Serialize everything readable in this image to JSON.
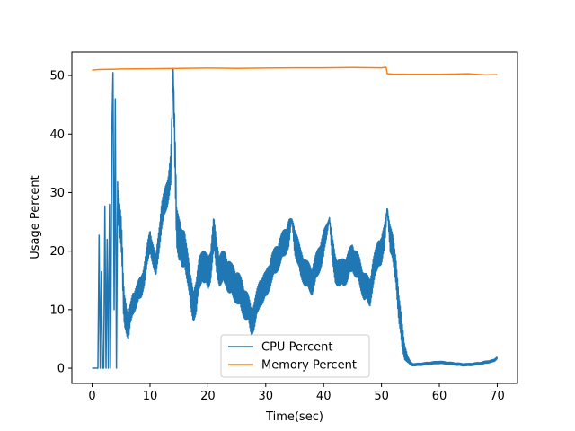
{
  "chart_data": {
    "type": "line",
    "title": "",
    "xlabel": "Time(sec)",
    "ylabel": "Usage Percent",
    "xlim": [
      -3.5,
      73.5
    ],
    "ylim": [
      -2.6,
      54.0
    ],
    "xticks": [
      0,
      10,
      20,
      30,
      40,
      50,
      60,
      70
    ],
    "yticks": [
      0,
      10,
      20,
      30,
      40,
      50
    ],
    "grid": false,
    "legend_position": "lower-center",
    "series": [
      {
        "name": "CPU Percent",
        "color": "#1f77b4",
        "x": [
          0,
          1.0,
          1.2,
          1.4,
          1.6,
          1.8,
          2.0,
          2.2,
          2.4,
          2.6,
          2.8,
          3.0,
          3.2,
          3.4,
          3.6,
          3.8,
          4.0,
          4.2,
          4.4,
          4.6,
          4.8,
          5.0,
          5.2,
          5.4,
          5.6,
          5.8,
          6.0,
          6.3,
          6.6,
          7.0,
          7.5,
          8.0,
          8.5,
          9.0,
          9.5,
          10.0,
          11.0,
          12.0,
          13.0,
          13.6,
          14.0,
          14.3,
          14.6,
          15.0,
          15.5,
          16.0,
          16.5,
          17.0,
          17.5,
          18.0,
          18.5,
          19.0,
          19.5,
          20.0,
          20.5,
          21.0,
          21.5,
          22.0,
          23.0,
          24.0,
          25.0,
          26.0,
          27.0,
          27.5,
          28.0,
          29.0,
          30.0,
          31.0,
          32.0,
          33.0,
          34.0,
          34.5,
          35.0,
          36.0,
          37.0,
          38.0,
          39.0,
          40.0,
          41.0,
          41.5,
          42.0,
          43.0,
          44.0,
          45.0,
          46.0,
          47.0,
          48.0,
          48.5,
          49.0,
          49.5,
          50.0,
          50.5,
          51.0,
          51.5,
          52.0,
          52.5,
          53.0,
          53.5,
          54.0,
          54.5,
          55.0,
          55.5,
          56.0,
          57.0,
          58.0,
          59.0,
          60.0,
          61.0,
          62.0,
          63.0,
          64.0,
          65.0,
          66.0,
          67.0,
          68.0,
          69.0,
          69.5,
          70.0
        ],
        "values": [
          0,
          0,
          22.7,
          0,
          16.5,
          0,
          0,
          27.7,
          0,
          22.0,
          0,
          28.0,
          0,
          40.0,
          50.5,
          10.0,
          46.0,
          0,
          30.0,
          27.0,
          25.0,
          23.0,
          19.0,
          12.0,
          10.0,
          9.5,
          8.0,
          7.0,
          9.0,
          11.0,
          12.0,
          13.0,
          14.0,
          16.0,
          19.0,
          22.0,
          17.0,
          26.0,
          30.0,
          34.0,
          51.2,
          38.0,
          25.0,
          22.0,
          20.0,
          21.0,
          17.0,
          13.0,
          11.0,
          12.0,
          16.0,
          18.0,
          17.0,
          16.0,
          18.0,
          23.0,
          19.0,
          17.0,
          17.0,
          15.0,
          14.0,
          12.0,
          10.0,
          8.0,
          9.0,
          13.0,
          14.0,
          17.0,
          19.0,
          21.0,
          23.0,
          25.5,
          22.0,
          18.0,
          16.0,
          15.0,
          18.0,
          21.0,
          25.7,
          20.0,
          17.0,
          16.0,
          17.0,
          19.0,
          17.0,
          14.0,
          13.0,
          16.0,
          18.0,
          20.0,
          20.0,
          22.0,
          27.5,
          22.0,
          20.0,
          17.0,
          10.0,
          6.0,
          3.0,
          1.5,
          0.8,
          0.6,
          0.6,
          0.7,
          0.8,
          0.9,
          1.0,
          0.9,
          0.8,
          0.7,
          0.6,
          0.6,
          0.7,
          0.8,
          1.0,
          1.2,
          1.3,
          1.8
        ],
        "noise": [
          0,
          0,
          0,
          0,
          0,
          0,
          0,
          0,
          0,
          0,
          0,
          0,
          0,
          0,
          0,
          0,
          0,
          0,
          3,
          3,
          3,
          3,
          3,
          3,
          3,
          3,
          2.5,
          2.5,
          2,
          2,
          2,
          2,
          2,
          2,
          2,
          2,
          2,
          2.5,
          2.5,
          3,
          0,
          4,
          4,
          4,
          3.5,
          3.5,
          3,
          3,
          3,
          3,
          3,
          3,
          3,
          3,
          3,
          3,
          3,
          3,
          3,
          3,
          3,
          3,
          2.5,
          2.5,
          2.5,
          2.5,
          2.5,
          2.5,
          2.5,
          2.5,
          2.5,
          0,
          2.5,
          2.5,
          2.5,
          2.5,
          2.5,
          2.5,
          0,
          2.5,
          2.5,
          2.5,
          2.5,
          2.5,
          2.5,
          2.5,
          2.5,
          2.5,
          2.5,
          2.5,
          2.5,
          2.5,
          0,
          2.5,
          2.5,
          2.5,
          2.5,
          2.5,
          1.5,
          0.6,
          0.3,
          0.2,
          0.2,
          0.2,
          0.2,
          0.2,
          0.2,
          0.2,
          0.2,
          0.2,
          0.2,
          0.2,
          0.2,
          0.2,
          0.2,
          0.2,
          0.2,
          0.2
        ]
      },
      {
        "name": "Memory Percent",
        "color": "#ff7f0e",
        "x": [
          0,
          1,
          5,
          10,
          15,
          20,
          25,
          30,
          35,
          40,
          45,
          50,
          50.8,
          51.0,
          52,
          55,
          60,
          65,
          68,
          70
        ],
        "values": [
          50.9,
          51.0,
          51.1,
          51.15,
          51.2,
          51.25,
          51.2,
          51.25,
          51.3,
          51.3,
          51.35,
          51.3,
          51.4,
          50.3,
          50.25,
          50.2,
          50.2,
          50.3,
          50.1,
          50.15
        ]
      }
    ]
  }
}
